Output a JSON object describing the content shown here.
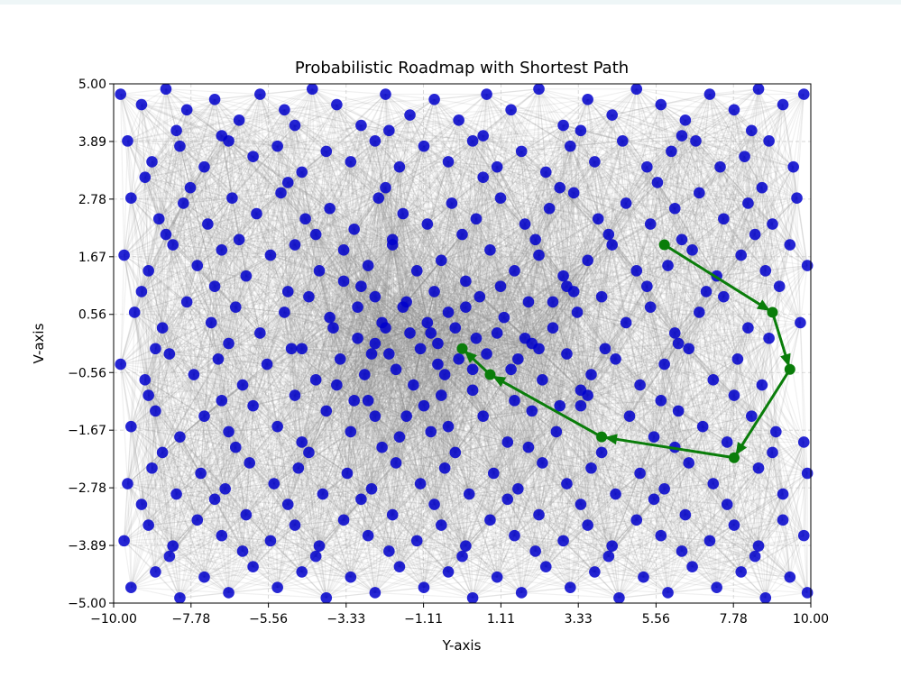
{
  "chart_data": {
    "type": "scatter",
    "title": "Probabilistic Roadmap with Shortest Path",
    "xlabel": "Y-axis",
    "ylabel": "V-axis",
    "xlim": [
      -10,
      10
    ],
    "ylim": [
      -5,
      5
    ],
    "grid": true,
    "x_ticks": [
      "−10.00",
      "−7.78",
      "−5.56",
      "−3.33",
      "−1.11",
      "1.11",
      "3.33",
      "5.56",
      "7.78",
      "10.00"
    ],
    "x_tick_values": [
      -10,
      -7.78,
      -5.56,
      -3.33,
      -1.11,
      1.11,
      3.33,
      5.56,
      7.78,
      10
    ],
    "y_ticks": [
      "−5.00",
      "−3.89",
      "−2.78",
      "−1.67",
      "−0.56",
      "0.56",
      "1.67",
      "2.78",
      "3.89",
      "5.00"
    ],
    "y_tick_values": [
      -5,
      -3.89,
      -2.78,
      -1.67,
      -0.56,
      0.56,
      1.67,
      2.78,
      3.89,
      5
    ],
    "node_color": "#0000cc",
    "edge_color": "#808080",
    "path_color": "#0a7d0a",
    "nodes": [
      [
        -9.8,
        4.8
      ],
      [
        -9.2,
        4.6
      ],
      [
        -8.5,
        4.9
      ],
      [
        -7.9,
        4.5
      ],
      [
        -7.1,
        4.7
      ],
      [
        -6.4,
        4.3
      ],
      [
        -5.8,
        4.8
      ],
      [
        -5.1,
        4.5
      ],
      [
        -4.3,
        4.9
      ],
      [
        -3.6,
        4.6
      ],
      [
        -2.9,
        4.2
      ],
      [
        -2.2,
        4.8
      ],
      [
        -1.5,
        4.4
      ],
      [
        -0.8,
        4.7
      ],
      [
        -0.1,
        4.3
      ],
      [
        0.7,
        4.8
      ],
      [
        1.4,
        4.5
      ],
      [
        2.2,
        4.9
      ],
      [
        2.9,
        4.2
      ],
      [
        3.6,
        4.7
      ],
      [
        4.3,
        4.4
      ],
      [
        5.0,
        4.9
      ],
      [
        5.7,
        4.6
      ],
      [
        6.4,
        4.3
      ],
      [
        7.1,
        4.8
      ],
      [
        7.8,
        4.5
      ],
      [
        8.5,
        4.9
      ],
      [
        9.2,
        4.6
      ],
      [
        9.8,
        4.8
      ],
      [
        -9.6,
        3.9
      ],
      [
        -8.9,
        3.5
      ],
      [
        -8.1,
        3.8
      ],
      [
        -7.4,
        3.4
      ],
      [
        -6.7,
        3.9
      ],
      [
        -6.0,
        3.6
      ],
      [
        -5.3,
        3.8
      ],
      [
        -4.6,
        3.3
      ],
      [
        -3.9,
        3.7
      ],
      [
        -3.2,
        3.5
      ],
      [
        -2.5,
        3.9
      ],
      [
        -1.8,
        3.4
      ],
      [
        -1.1,
        3.8
      ],
      [
        -0.4,
        3.5
      ],
      [
        0.3,
        3.9
      ],
      [
        1.0,
        3.4
      ],
      [
        1.7,
        3.7
      ],
      [
        2.4,
        3.3
      ],
      [
        3.1,
        3.8
      ],
      [
        3.8,
        3.5
      ],
      [
        4.6,
        3.9
      ],
      [
        5.3,
        3.4
      ],
      [
        6.0,
        3.7
      ],
      [
        6.7,
        3.9
      ],
      [
        7.4,
        3.4
      ],
      [
        8.1,
        3.6
      ],
      [
        8.8,
        3.9
      ],
      [
        9.5,
        3.4
      ],
      [
        -9.5,
        2.8
      ],
      [
        -8.7,
        2.4
      ],
      [
        -8.0,
        2.7
      ],
      [
        -7.3,
        2.3
      ],
      [
        -6.6,
        2.8
      ],
      [
        -5.9,
        2.5
      ],
      [
        -5.2,
        2.9
      ],
      [
        -4.5,
        2.4
      ],
      [
        -3.8,
        2.6
      ],
      [
        -3.1,
        2.2
      ],
      [
        -2.4,
        2.8
      ],
      [
        -1.7,
        2.5
      ],
      [
        -1.0,
        2.3
      ],
      [
        -0.3,
        2.7
      ],
      [
        0.4,
        2.4
      ],
      [
        1.1,
        2.8
      ],
      [
        1.8,
        2.3
      ],
      [
        2.5,
        2.6
      ],
      [
        3.2,
        2.9
      ],
      [
        3.9,
        2.4
      ],
      [
        4.7,
        2.7
      ],
      [
        5.4,
        2.3
      ],
      [
        6.1,
        2.6
      ],
      [
        6.8,
        2.9
      ],
      [
        7.5,
        2.4
      ],
      [
        8.2,
        2.7
      ],
      [
        8.9,
        2.3
      ],
      [
        9.6,
        2.8
      ],
      [
        -9.7,
        1.7
      ],
      [
        -9.0,
        1.4
      ],
      [
        -8.3,
        1.9
      ],
      [
        -7.6,
        1.5
      ],
      [
        -6.9,
        1.8
      ],
      [
        -6.2,
        1.3
      ],
      [
        -5.5,
        1.7
      ],
      [
        -4.8,
        1.9
      ],
      [
        -4.1,
        1.4
      ],
      [
        -3.4,
        1.8
      ],
      [
        -2.7,
        1.5
      ],
      [
        -2.0,
        1.9
      ],
      [
        -1.3,
        1.4
      ],
      [
        -0.6,
        1.6
      ],
      [
        0.1,
        1.2
      ],
      [
        0.8,
        1.8
      ],
      [
        1.5,
        1.4
      ],
      [
        2.2,
        1.7
      ],
      [
        2.9,
        1.3
      ],
      [
        3.6,
        1.6
      ],
      [
        4.3,
        1.9
      ],
      [
        5.0,
        1.4
      ],
      [
        5.9,
        1.5
      ],
      [
        6.6,
        1.8
      ],
      [
        7.3,
        1.3
      ],
      [
        8.0,
        1.7
      ],
      [
        8.7,
        1.4
      ],
      [
        9.4,
        1.9
      ],
      [
        9.9,
        1.5
      ],
      [
        -9.4,
        0.6
      ],
      [
        -8.6,
        0.3
      ],
      [
        -7.9,
        0.8
      ],
      [
        -7.2,
        0.4
      ],
      [
        -6.5,
        0.7
      ],
      [
        -5.8,
        0.2
      ],
      [
        -5.1,
        0.6
      ],
      [
        -4.4,
        0.9
      ],
      [
        -3.7,
        0.3
      ],
      [
        -3.0,
        0.7
      ],
      [
        -2.3,
        0.4
      ],
      [
        -1.6,
        0.8
      ],
      [
        -0.9,
        0.2
      ],
      [
        -0.4,
        0.6
      ],
      [
        0.5,
        0.9
      ],
      [
        1.2,
        0.5
      ],
      [
        1.9,
        0.8
      ],
      [
        2.6,
        0.3
      ],
      [
        3.3,
        0.6
      ],
      [
        4.0,
        0.9
      ],
      [
        4.7,
        0.4
      ],
      [
        5.4,
        0.7
      ],
      [
        6.1,
        0.2
      ],
      [
        6.8,
        0.6
      ],
      [
        7.5,
        0.9
      ],
      [
        8.2,
        0.3
      ],
      [
        9.7,
        0.4
      ],
      [
        -9.8,
        -0.4
      ],
      [
        -9.1,
        -0.7
      ],
      [
        -8.4,
        -0.2
      ],
      [
        -7.7,
        -0.6
      ],
      [
        -7.0,
        -0.3
      ],
      [
        -6.3,
        -0.8
      ],
      [
        -5.6,
        -0.4
      ],
      [
        -4.9,
        -0.1
      ],
      [
        -4.2,
        -0.7
      ],
      [
        -3.5,
        -0.3
      ],
      [
        -2.8,
        -0.6
      ],
      [
        -2.1,
        -0.2
      ],
      [
        -1.4,
        -0.8
      ],
      [
        -0.7,
        -0.4
      ],
      [
        0.3,
        -0.9
      ],
      [
        1.6,
        -0.3
      ],
      [
        2.3,
        -0.7
      ],
      [
        3.0,
        -0.2
      ],
      [
        3.7,
        -0.6
      ],
      [
        4.4,
        -0.3
      ],
      [
        5.1,
        -0.8
      ],
      [
        5.8,
        -0.4
      ],
      [
        6.5,
        -0.1
      ],
      [
        7.2,
        -0.7
      ],
      [
        7.9,
        -0.3
      ],
      [
        8.6,
        -0.8
      ],
      [
        -9.5,
        -1.6
      ],
      [
        -8.8,
        -1.3
      ],
      [
        -8.1,
        -1.8
      ],
      [
        -7.4,
        -1.4
      ],
      [
        -6.7,
        -1.7
      ],
      [
        -6.0,
        -1.2
      ],
      [
        -5.3,
        -1.6
      ],
      [
        -4.6,
        -1.9
      ],
      [
        -3.9,
        -1.3
      ],
      [
        -3.2,
        -1.7
      ],
      [
        -2.5,
        -1.4
      ],
      [
        -1.8,
        -1.8
      ],
      [
        -1.1,
        -1.2
      ],
      [
        -0.4,
        -1.6
      ],
      [
        0.6,
        -1.4
      ],
      [
        1.3,
        -1.9
      ],
      [
        2.0,
        -1.3
      ],
      [
        2.7,
        -1.7
      ],
      [
        3.4,
        -1.2
      ],
      [
        4.8,
        -1.4
      ],
      [
        5.5,
        -1.8
      ],
      [
        6.2,
        -1.3
      ],
      [
        6.9,
        -1.6
      ],
      [
        7.6,
        -1.9
      ],
      [
        8.3,
        -1.4
      ],
      [
        9.0,
        -1.7
      ],
      [
        9.8,
        -1.9
      ],
      [
        -9.6,
        -2.7
      ],
      [
        -8.9,
        -2.4
      ],
      [
        -8.2,
        -2.9
      ],
      [
        -7.5,
        -2.5
      ],
      [
        -6.8,
        -2.8
      ],
      [
        -6.1,
        -2.3
      ],
      [
        -5.4,
        -2.7
      ],
      [
        -4.7,
        -2.4
      ],
      [
        -4.0,
        -2.9
      ],
      [
        -3.3,
        -2.5
      ],
      [
        -2.6,
        -2.8
      ],
      [
        -1.9,
        -2.3
      ],
      [
        -1.2,
        -2.7
      ],
      [
        -0.5,
        -2.4
      ],
      [
        0.2,
        -2.9
      ],
      [
        0.9,
        -2.5
      ],
      [
        1.6,
        -2.8
      ],
      [
        2.3,
        -2.3
      ],
      [
        3.0,
        -2.7
      ],
      [
        3.7,
        -2.4
      ],
      [
        4.4,
        -2.9
      ],
      [
        5.1,
        -2.5
      ],
      [
        5.8,
        -2.8
      ],
      [
        6.5,
        -2.3
      ],
      [
        7.2,
        -2.7
      ],
      [
        8.5,
        -2.4
      ],
      [
        9.2,
        -2.9
      ],
      [
        9.9,
        -2.5
      ],
      [
        -9.7,
        -3.8
      ],
      [
        -9.0,
        -3.5
      ],
      [
        -8.3,
        -3.9
      ],
      [
        -7.6,
        -3.4
      ],
      [
        -6.9,
        -3.7
      ],
      [
        -6.2,
        -3.3
      ],
      [
        -5.5,
        -3.8
      ],
      [
        -4.8,
        -3.5
      ],
      [
        -4.1,
        -3.9
      ],
      [
        -3.4,
        -3.4
      ],
      [
        -2.7,
        -3.7
      ],
      [
        -2.0,
        -3.3
      ],
      [
        -1.3,
        -3.8
      ],
      [
        -0.6,
        -3.5
      ],
      [
        0.1,
        -3.9
      ],
      [
        0.8,
        -3.4
      ],
      [
        1.5,
        -3.7
      ],
      [
        2.2,
        -3.3
      ],
      [
        2.9,
        -3.8
      ],
      [
        3.6,
        -3.5
      ],
      [
        4.3,
        -3.9
      ],
      [
        5.0,
        -3.4
      ],
      [
        5.7,
        -3.7
      ],
      [
        6.4,
        -3.3
      ],
      [
        7.1,
        -3.8
      ],
      [
        7.8,
        -3.5
      ],
      [
        8.5,
        -3.9
      ],
      [
        9.2,
        -3.4
      ],
      [
        9.8,
        -3.7
      ],
      [
        -9.5,
        -4.7
      ],
      [
        -8.8,
        -4.4
      ],
      [
        -8.1,
        -4.9
      ],
      [
        -7.4,
        -4.5
      ],
      [
        -6.7,
        -4.8
      ],
      [
        -6.0,
        -4.3
      ],
      [
        -5.3,
        -4.7
      ],
      [
        -4.6,
        -4.4
      ],
      [
        -3.9,
        -4.9
      ],
      [
        -3.2,
        -4.5
      ],
      [
        -2.5,
        -4.8
      ],
      [
        -1.8,
        -4.3
      ],
      [
        -1.1,
        -4.7
      ],
      [
        -0.4,
        -4.4
      ],
      [
        0.3,
        -4.9
      ],
      [
        1.0,
        -4.5
      ],
      [
        1.7,
        -4.8
      ],
      [
        2.4,
        -4.3
      ],
      [
        3.1,
        -4.7
      ],
      [
        3.8,
        -4.4
      ],
      [
        4.5,
        -4.9
      ],
      [
        5.2,
        -4.5
      ],
      [
        5.9,
        -4.8
      ],
      [
        6.6,
        -4.3
      ],
      [
        7.3,
        -4.7
      ],
      [
        8.0,
        -4.4
      ],
      [
        8.7,
        -4.9
      ],
      [
        9.4,
        -4.5
      ],
      [
        9.9,
        -4.8
      ],
      [
        -8.2,
        4.1
      ],
      [
        -6.9,
        4.0
      ],
      [
        -4.8,
        4.2
      ],
      [
        -2.1,
        4.1
      ],
      [
        0.6,
        4.0
      ],
      [
        3.4,
        4.1
      ],
      [
        6.3,
        4.0
      ],
      [
        8.3,
        4.1
      ],
      [
        -9.1,
        3.2
      ],
      [
        -7.8,
        3.0
      ],
      [
        -5.0,
        3.1
      ],
      [
        -2.2,
        3.0
      ],
      [
        0.6,
        3.2
      ],
      [
        2.8,
        3.0
      ],
      [
        5.6,
        3.1
      ],
      [
        8.6,
        3.0
      ],
      [
        -8.5,
        2.1
      ],
      [
        -6.4,
        2.0
      ],
      [
        -4.2,
        2.1
      ],
      [
        -2.0,
        2.0
      ],
      [
        0.0,
        2.1
      ],
      [
        2.1,
        2.0
      ],
      [
        4.2,
        2.1
      ],
      [
        6.3,
        2.0
      ],
      [
        8.4,
        2.1
      ],
      [
        -9.2,
        1.0
      ],
      [
        -7.1,
        1.1
      ],
      [
        -5.0,
        1.0
      ],
      [
        -2.9,
        1.1
      ],
      [
        -0.8,
        1.0
      ],
      [
        1.1,
        1.1
      ],
      [
        3.2,
        1.0
      ],
      [
        5.3,
        1.1
      ],
      [
        7.0,
        1.0
      ],
      [
        9.1,
        1.1
      ],
      [
        -8.8,
        -0.1
      ],
      [
        -6.7,
        0.0
      ],
      [
        -4.6,
        -0.1
      ],
      [
        -2.5,
        0.0
      ],
      [
        -1.2,
        -0.1
      ],
      [
        2.0,
        0.0
      ],
      [
        4.1,
        -0.1
      ],
      [
        6.2,
        0.0
      ],
      [
        8.8,
        0.1
      ],
      [
        -9.0,
        -1.0
      ],
      [
        -6.9,
        -1.1
      ],
      [
        -4.8,
        -1.0
      ],
      [
        -2.7,
        -1.1
      ],
      [
        -0.6,
        -1.0
      ],
      [
        1.5,
        -1.1
      ],
      [
        3.6,
        -1.0
      ],
      [
        5.7,
        -1.1
      ],
      [
        7.8,
        -1.0
      ],
      [
        -8.6,
        -2.1
      ],
      [
        -6.5,
        -2.0
      ],
      [
        -4.4,
        -2.1
      ],
      [
        -2.3,
        -2.0
      ],
      [
        -0.2,
        -2.1
      ],
      [
        1.9,
        -2.0
      ],
      [
        4.0,
        -2.1
      ],
      [
        6.1,
        -2.0
      ],
      [
        8.9,
        -2.1
      ],
      [
        -9.2,
        -3.1
      ],
      [
        -7.1,
        -3.0
      ],
      [
        -5.0,
        -3.1
      ],
      [
        -2.9,
        -3.0
      ],
      [
        -0.8,
        -3.1
      ],
      [
        1.3,
        -3.0
      ],
      [
        3.4,
        -3.1
      ],
      [
        5.5,
        -3.0
      ],
      [
        7.6,
        -3.1
      ],
      [
        -8.4,
        -4.1
      ],
      [
        -6.3,
        -4.0
      ],
      [
        -4.2,
        -4.1
      ],
      [
        -2.1,
        -4.0
      ],
      [
        0.0,
        -4.1
      ],
      [
        2.1,
        -4.0
      ],
      [
        4.2,
        -4.1
      ],
      [
        6.3,
        -4.0
      ],
      [
        8.4,
        -4.1
      ],
      [
        -3.0,
        0.1
      ],
      [
        -2.6,
        -0.2
      ],
      [
        -2.2,
        0.3
      ],
      [
        -1.9,
        -0.5
      ],
      [
        -1.5,
        0.2
      ],
      [
        -1.0,
        0.4
      ],
      [
        -0.7,
        0.0
      ],
      [
        -0.2,
        0.3
      ],
      [
        0.1,
        0.7
      ],
      [
        0.4,
        0.1
      ],
      [
        0.7,
        -0.2
      ],
      [
        1.0,
        0.2
      ],
      [
        1.4,
        -0.5
      ],
      [
        1.8,
        0.1
      ],
      [
        2.2,
        -0.1
      ],
      [
        -0.5,
        -0.6
      ],
      [
        -0.1,
        -0.3
      ],
      [
        0.3,
        -0.5
      ],
      [
        -1.7,
        0.7
      ],
      [
        -2.5,
        0.9
      ],
      [
        -3.4,
        1.2
      ],
      [
        -3.8,
        0.5
      ],
      [
        -3.6,
        -0.8
      ],
      [
        -3.1,
        -1.1
      ],
      [
        2.6,
        0.8
      ],
      [
        3.0,
        1.1
      ],
      [
        3.4,
        -0.9
      ],
      [
        2.8,
        -1.2
      ],
      [
        -1.6,
        -1.4
      ],
      [
        -0.9,
        -1.7
      ]
    ],
    "path": [
      [
        5.8,
        1.9
      ],
      [
        8.9,
        0.6
      ],
      [
        9.4,
        -0.5
      ],
      [
        7.8,
        -2.2
      ],
      [
        4.0,
        -1.8
      ],
      [
        0.8,
        -0.6
      ],
      [
        0.0,
        -0.1
      ]
    ]
  }
}
